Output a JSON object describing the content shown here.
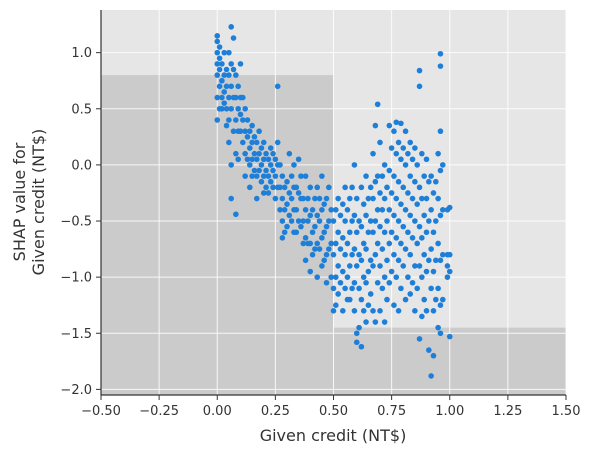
{
  "chart_data": {
    "type": "scatter",
    "title": "",
    "xlabel": "Given credit (NT$)",
    "ylabel_lines": [
      "SHAP value for",
      "Given credit (NT$)"
    ],
    "xlim": [
      -0.5,
      1.5
    ],
    "ylim": [
      -2.05,
      1.38
    ],
    "xticks": [
      -0.5,
      -0.25,
      0.0,
      0.25,
      0.5,
      0.75,
      1.0,
      1.25,
      1.5
    ],
    "xtick_labels": [
      "−0.50",
      "−0.25",
      "0.00",
      "0.25",
      "0.50",
      "0.75",
      "1.00",
      "1.25",
      "1.50"
    ],
    "yticks": [
      -2.0,
      -1.5,
      -1.0,
      -0.5,
      0.0,
      0.5,
      1.0
    ],
    "ytick_labels": [
      "−2.0",
      "−1.5",
      "−1.0",
      "−0.5",
      "0.0",
      "0.5",
      "1.0"
    ],
    "grid": true,
    "colors": {
      "background": "#e6e6e6",
      "shade": "#cbcbcb",
      "point": "#1e7fd8",
      "grid": "#ffffff",
      "axis": "#333333"
    },
    "shaded_regions": [
      {
        "x": [
          -0.5,
          0.5
        ],
        "y": [
          -2.05,
          0.8
        ]
      },
      {
        "x": [
          0.5,
          1.5
        ],
        "y": [
          -2.05,
          -1.45
        ]
      }
    ],
    "points": [
      [
        0.0,
        1.15
      ],
      [
        0.0,
        1.1
      ],
      [
        0.0,
        1.0
      ],
      [
        0.0,
        0.9
      ],
      [
        0.0,
        0.8
      ],
      [
        0.0,
        0.6
      ],
      [
        0.0,
        0.4
      ],
      [
        0.01,
        1.05
      ],
      [
        0.01,
        0.95
      ],
      [
        0.01,
        0.85
      ],
      [
        0.01,
        0.7
      ],
      [
        0.01,
        0.5
      ],
      [
        0.02,
        0.9
      ],
      [
        0.02,
        0.75
      ],
      [
        0.02,
        0.6
      ],
      [
        0.02,
        0.5
      ],
      [
        0.03,
        1.0
      ],
      [
        0.03,
        0.8
      ],
      [
        0.03,
        0.65
      ],
      [
        0.03,
        0.55
      ],
      [
        0.04,
        0.85
      ],
      [
        0.04,
        0.7
      ],
      [
        0.04,
        0.5
      ],
      [
        0.04,
        0.35
      ],
      [
        0.05,
        1.0
      ],
      [
        0.05,
        0.8
      ],
      [
        0.05,
        0.6
      ],
      [
        0.05,
        0.4
      ],
      [
        0.05,
        0.2
      ],
      [
        0.06,
        1.23
      ],
      [
        0.06,
        0.9
      ],
      [
        0.06,
        0.7
      ],
      [
        0.06,
        0.5
      ],
      [
        0.06,
        0.0
      ],
      [
        0.06,
        -0.3
      ],
      [
        0.07,
        1.13
      ],
      [
        0.07,
        0.85
      ],
      [
        0.07,
        0.6
      ],
      [
        0.07,
        0.3
      ],
      [
        0.08,
        0.8
      ],
      [
        0.08,
        0.6
      ],
      [
        0.08,
        0.4
      ],
      [
        0.08,
        0.1
      ],
      [
        0.08,
        -0.44
      ],
      [
        0.09,
        0.7
      ],
      [
        0.09,
        0.5
      ],
      [
        0.09,
        0.3
      ],
      [
        0.09,
        0.05
      ],
      [
        0.1,
        0.9
      ],
      [
        0.1,
        0.6
      ],
      [
        0.1,
        0.45
      ],
      [
        0.1,
        0.3
      ],
      [
        0.11,
        0.6
      ],
      [
        0.11,
        0.4
      ],
      [
        0.11,
        0.2
      ],
      [
        0.12,
        0.5
      ],
      [
        0.12,
        0.3
      ],
      [
        0.12,
        0.1
      ],
      [
        0.12,
        -0.1
      ],
      [
        0.13,
        0.4
      ],
      [
        0.13,
        0.25
      ],
      [
        0.13,
        0.05
      ],
      [
        0.14,
        0.3
      ],
      [
        0.14,
        0.15
      ],
      [
        0.14,
        0.0
      ],
      [
        0.14,
        -0.2
      ],
      [
        0.15,
        0.35
      ],
      [
        0.15,
        0.2
      ],
      [
        0.15,
        0.05
      ],
      [
        0.15,
        -0.1
      ],
      [
        0.16,
        0.25
      ],
      [
        0.16,
        0.1
      ],
      [
        0.16,
        -0.05
      ],
      [
        0.17,
        0.2
      ],
      [
        0.17,
        0.05
      ],
      [
        0.17,
        -0.1
      ],
      [
        0.17,
        -0.3
      ],
      [
        0.18,
        0.3
      ],
      [
        0.18,
        0.1
      ],
      [
        0.18,
        -0.05
      ],
      [
        0.19,
        0.15
      ],
      [
        0.19,
        0.0
      ],
      [
        0.19,
        -0.15
      ],
      [
        0.2,
        0.2
      ],
      [
        0.2,
        0.05
      ],
      [
        0.2,
        -0.1
      ],
      [
        0.2,
        -0.25
      ],
      [
        0.21,
        0.1
      ],
      [
        0.21,
        -0.05
      ],
      [
        0.21,
        -0.2
      ],
      [
        0.22,
        0.05
      ],
      [
        0.22,
        -0.1
      ],
      [
        0.22,
        -0.25
      ],
      [
        0.23,
        0.15
      ],
      [
        0.23,
        0.0
      ],
      [
        0.23,
        -0.15
      ],
      [
        0.24,
        0.1
      ],
      [
        0.24,
        -0.05
      ],
      [
        0.24,
        -0.2
      ],
      [
        0.25,
        0.05
      ],
      [
        0.25,
        -0.1
      ],
      [
        0.25,
        -0.3
      ],
      [
        0.26,
        0.7
      ],
      [
        0.26,
        0.2
      ],
      [
        0.26,
        0.0
      ],
      [
        0.26,
        -0.2
      ],
      [
        0.27,
        0.0
      ],
      [
        0.27,
        -0.2
      ],
      [
        0.27,
        -0.4
      ],
      [
        0.28,
        -0.1
      ],
      [
        0.28,
        -0.3
      ],
      [
        0.28,
        -0.5
      ],
      [
        0.28,
        -0.65
      ],
      [
        0.29,
        -0.2
      ],
      [
        0.29,
        -0.4
      ],
      [
        0.29,
        -0.6
      ],
      [
        0.3,
        -0.15
      ],
      [
        0.3,
        -0.35
      ],
      [
        0.3,
        -0.55
      ],
      [
        0.31,
        0.1
      ],
      [
        0.31,
        -0.25
      ],
      [
        0.31,
        -0.45
      ],
      [
        0.32,
        -0.1
      ],
      [
        0.32,
        -0.3
      ],
      [
        0.32,
        -0.5
      ],
      [
        0.33,
        0.0
      ],
      [
        0.33,
        -0.2
      ],
      [
        0.33,
        -0.4
      ],
      [
        0.33,
        -0.6
      ],
      [
        0.34,
        -0.2
      ],
      [
        0.34,
        -0.4
      ],
      [
        0.34,
        -0.6
      ],
      [
        0.35,
        0.05
      ],
      [
        0.35,
        -0.25
      ],
      [
        0.35,
        -0.5
      ],
      [
        0.36,
        -0.1
      ],
      [
        0.36,
        -0.3
      ],
      [
        0.36,
        -0.55
      ],
      [
        0.37,
        -0.3
      ],
      [
        0.37,
        -0.5
      ],
      [
        0.37,
        -0.7
      ],
      [
        0.38,
        -0.1
      ],
      [
        0.38,
        -0.4
      ],
      [
        0.38,
        -0.65
      ],
      [
        0.38,
        -0.85
      ],
      [
        0.39,
        -0.3
      ],
      [
        0.39,
        -0.5
      ],
      [
        0.39,
        -0.7
      ],
      [
        0.4,
        -0.2
      ],
      [
        0.4,
        -0.45
      ],
      [
        0.4,
        -0.7
      ],
      [
        0.4,
        -0.95
      ],
      [
        0.41,
        -0.4
      ],
      [
        0.41,
        -0.6
      ],
      [
        0.41,
        -0.8
      ],
      [
        0.42,
        -0.3
      ],
      [
        0.42,
        -0.55
      ],
      [
        0.42,
        -0.75
      ],
      [
        0.43,
        -0.2
      ],
      [
        0.43,
        -0.45
      ],
      [
        0.43,
        -0.7
      ],
      [
        0.43,
        -1.0
      ],
      [
        0.44,
        -0.3
      ],
      [
        0.44,
        -0.5
      ],
      [
        0.44,
        -0.75
      ],
      [
        0.45,
        -0.1
      ],
      [
        0.45,
        -0.4
      ],
      [
        0.45,
        -0.65
      ],
      [
        0.45,
        -0.9
      ],
      [
        0.46,
        -0.35
      ],
      [
        0.46,
        -0.6
      ],
      [
        0.46,
        -0.85
      ],
      [
        0.47,
        -0.3
      ],
      [
        0.47,
        -0.55
      ],
      [
        0.47,
        -0.8
      ],
      [
        0.47,
        -1.05
      ],
      [
        0.48,
        -0.2
      ],
      [
        0.48,
        -0.5
      ],
      [
        0.48,
        -0.75
      ],
      [
        0.49,
        -0.4
      ],
      [
        0.49,
        -0.7
      ],
      [
        0.49,
        -1.0
      ],
      [
        0.5,
        -0.5
      ],
      [
        0.5,
        -0.8
      ],
      [
        0.5,
        -1.1
      ],
      [
        0.5,
        -1.3
      ],
      [
        0.51,
        -0.4
      ],
      [
        0.51,
        -0.7
      ],
      [
        0.51,
        -1.0
      ],
      [
        0.51,
        -1.25
      ],
      [
        0.52,
        -0.3
      ],
      [
        0.52,
        -0.6
      ],
      [
        0.52,
        -0.9
      ],
      [
        0.52,
        -1.15
      ],
      [
        0.53,
        -0.45
      ],
      [
        0.53,
        -0.75
      ],
      [
        0.53,
        -1.05
      ],
      [
        0.54,
        -0.35
      ],
      [
        0.54,
        -0.65
      ],
      [
        0.54,
        -0.95
      ],
      [
        0.54,
        -1.3
      ],
      [
        0.55,
        -0.2
      ],
      [
        0.55,
        -0.5
      ],
      [
        0.55,
        -0.8
      ],
      [
        0.55,
        -1.1
      ],
      [
        0.56,
        -0.4
      ],
      [
        0.56,
        -0.7
      ],
      [
        0.56,
        -1.0
      ],
      [
        0.56,
        -1.2
      ],
      [
        0.57,
        -0.3
      ],
      [
        0.57,
        -0.6
      ],
      [
        0.57,
        -0.9
      ],
      [
        0.57,
        -1.2
      ],
      [
        0.58,
        -0.2
      ],
      [
        0.58,
        -0.5
      ],
      [
        0.58,
        -0.8
      ],
      [
        0.58,
        -1.1
      ],
      [
        0.59,
        0.0
      ],
      [
        0.59,
        -0.45
      ],
      [
        0.59,
        -0.75
      ],
      [
        0.59,
        -1.05
      ],
      [
        0.59,
        -1.3
      ],
      [
        0.6,
        -0.3
      ],
      [
        0.6,
        -0.6
      ],
      [
        0.6,
        -0.9
      ],
      [
        0.6,
        -1.5
      ],
      [
        0.6,
        -1.58
      ],
      [
        0.61,
        -0.5
      ],
      [
        0.61,
        -0.8
      ],
      [
        0.61,
        -1.1
      ],
      [
        0.61,
        -1.45
      ],
      [
        0.62,
        -0.2
      ],
      [
        0.62,
        -0.55
      ],
      [
        0.62,
        -0.85
      ],
      [
        0.62,
        -1.2
      ],
      [
        0.62,
        -1.62
      ],
      [
        0.63,
        -0.35
      ],
      [
        0.63,
        -0.7
      ],
      [
        0.63,
        -1.0
      ],
      [
        0.63,
        -1.3
      ],
      [
        0.64,
        -0.1
      ],
      [
        0.64,
        -0.45
      ],
      [
        0.64,
        -0.75
      ],
      [
        0.64,
        -1.05
      ],
      [
        0.64,
        -1.4
      ],
      [
        0.65,
        -0.3
      ],
      [
        0.65,
        -0.6
      ],
      [
        0.65,
        -0.95
      ],
      [
        0.65,
        -1.25
      ],
      [
        0.66,
        -0.2
      ],
      [
        0.66,
        -0.5
      ],
      [
        0.66,
        -0.85
      ],
      [
        0.66,
        -1.15
      ],
      [
        0.67,
        0.1
      ],
      [
        0.67,
        -0.3
      ],
      [
        0.67,
        -0.6
      ],
      [
        0.67,
        -0.9
      ],
      [
        0.67,
        -1.3
      ],
      [
        0.68,
        0.35
      ],
      [
        0.68,
        -0.15
      ],
      [
        0.68,
        -0.5
      ],
      [
        0.68,
        -0.8
      ],
      [
        0.68,
        -1.4
      ],
      [
        0.69,
        0.54
      ],
      [
        0.69,
        -0.1
      ],
      [
        0.69,
        -0.4
      ],
      [
        0.69,
        -0.7
      ],
      [
        0.69,
        -1.05
      ],
      [
        0.7,
        0.2
      ],
      [
        0.7,
        -0.25
      ],
      [
        0.7,
        -0.55
      ],
      [
        0.7,
        -0.9
      ],
      [
        0.7,
        -1.3
      ],
      [
        0.71,
        -0.1
      ],
      [
        0.71,
        -0.4
      ],
      [
        0.71,
        -0.75
      ],
      [
        0.71,
        -1.1
      ],
      [
        0.72,
        0.0
      ],
      [
        0.72,
        -0.3
      ],
      [
        0.72,
        -0.6
      ],
      [
        0.72,
        -1.0
      ],
      [
        0.72,
        -1.4
      ],
      [
        0.73,
        -0.2
      ],
      [
        0.73,
        -0.5
      ],
      [
        0.73,
        -0.85
      ],
      [
        0.73,
        -1.2
      ],
      [
        0.74,
        0.35
      ],
      [
        0.74,
        -0.05
      ],
      [
        0.74,
        -0.4
      ],
      [
        0.74,
        -0.7
      ],
      [
        0.74,
        -1.05
      ],
      [
        0.75,
        0.15
      ],
      [
        0.75,
        -0.25
      ],
      [
        0.75,
        -0.6
      ],
      [
        0.75,
        -0.95
      ],
      [
        0.76,
        0.3
      ],
      [
        0.76,
        -0.1
      ],
      [
        0.76,
        -0.45
      ],
      [
        0.76,
        -0.8
      ],
      [
        0.76,
        -1.25
      ],
      [
        0.77,
        0.38
      ],
      [
        0.77,
        0.1
      ],
      [
        0.77,
        -0.3
      ],
      [
        0.77,
        -0.65
      ],
      [
        0.77,
        -1.0
      ],
      [
        0.78,
        0.2
      ],
      [
        0.78,
        -0.15
      ],
      [
        0.78,
        -0.5
      ],
      [
        0.78,
        -0.85
      ],
      [
        0.78,
        -1.3
      ],
      [
        0.79,
        0.37
      ],
      [
        0.79,
        0.05
      ],
      [
        0.79,
        -0.35
      ],
      [
        0.79,
        -0.7
      ],
      [
        0.79,
        -1.1
      ],
      [
        0.8,
        0.15
      ],
      [
        0.8,
        -0.2
      ],
      [
        0.8,
        -0.55
      ],
      [
        0.8,
        -0.9
      ],
      [
        0.81,
        0.3
      ],
      [
        0.81,
        0.0
      ],
      [
        0.81,
        -0.4
      ],
      [
        0.81,
        -0.75
      ],
      [
        0.81,
        -1.2
      ],
      [
        0.82,
        0.1
      ],
      [
        0.82,
        -0.25
      ],
      [
        0.82,
        -0.6
      ],
      [
        0.82,
        -1.0
      ],
      [
        0.83,
        0.2
      ],
      [
        0.83,
        -0.1
      ],
      [
        0.83,
        -0.45
      ],
      [
        0.83,
        -0.8
      ],
      [
        0.83,
        -1.15
      ],
      [
        0.84,
        0.05
      ],
      [
        0.84,
        -0.3
      ],
      [
        0.84,
        -0.65
      ],
      [
        0.84,
        -1.05
      ],
      [
        0.85,
        0.15
      ],
      [
        0.85,
        -0.15
      ],
      [
        0.85,
        -0.5
      ],
      [
        0.85,
        -0.9
      ],
      [
        0.85,
        -1.3
      ],
      [
        0.86,
        0.0
      ],
      [
        0.86,
        -0.35
      ],
      [
        0.86,
        -0.7
      ],
      [
        0.86,
        -1.1
      ],
      [
        0.87,
        0.84
      ],
      [
        0.87,
        0.7
      ],
      [
        0.87,
        -0.2
      ],
      [
        0.87,
        -0.55
      ],
      [
        0.87,
        -0.9
      ],
      [
        0.87,
        -1.55
      ],
      [
        0.88,
        0.1
      ],
      [
        0.88,
        -0.3
      ],
      [
        0.88,
        -0.65
      ],
      [
        0.88,
        -1.0
      ],
      [
        0.88,
        -1.35
      ],
      [
        0.89,
        -0.1
      ],
      [
        0.89,
        -0.45
      ],
      [
        0.89,
        -0.8
      ],
      [
        0.89,
        -1.2
      ],
      [
        0.9,
        0.05
      ],
      [
        0.9,
        -0.3
      ],
      [
        0.9,
        -0.6
      ],
      [
        0.9,
        -0.95
      ],
      [
        0.9,
        -1.3
      ],
      [
        0.91,
        -0.15
      ],
      [
        0.91,
        -0.5
      ],
      [
        0.91,
        -0.85
      ],
      [
        0.91,
        -1.65
      ],
      [
        0.92,
        -0.1
      ],
      [
        0.92,
        -0.4
      ],
      [
        0.92,
        -0.75
      ],
      [
        0.92,
        -1.1
      ],
      [
        0.92,
        -1.88
      ],
      [
        0.93,
        -0.25
      ],
      [
        0.93,
        -0.6
      ],
      [
        0.93,
        -0.95
      ],
      [
        0.93,
        -1.3
      ],
      [
        0.93,
        -1.7
      ],
      [
        0.94,
        -0.15
      ],
      [
        0.94,
        -0.5
      ],
      [
        0.94,
        -0.85
      ],
      [
        0.94,
        -1.2
      ],
      [
        0.95,
        0.1
      ],
      [
        0.95,
        -0.3
      ],
      [
        0.95,
        -0.7
      ],
      [
        0.95,
        -1.1
      ],
      [
        0.95,
        -1.45
      ],
      [
        0.96,
        0.99
      ],
      [
        0.96,
        0.88
      ],
      [
        0.96,
        0.3
      ],
      [
        0.96,
        -0.05
      ],
      [
        0.96,
        -0.45
      ],
      [
        0.96,
        -0.85
      ],
      [
        0.96,
        -1.25
      ],
      [
        0.96,
        -1.5
      ],
      [
        0.97,
        0.0
      ],
      [
        0.97,
        -0.4
      ],
      [
        0.97,
        -0.8
      ],
      [
        0.97,
        -1.2
      ],
      [
        0.99,
        -0.4
      ],
      [
        0.99,
        -0.8
      ],
      [
        0.99,
        -0.9
      ],
      [
        0.99,
        -1.0
      ],
      [
        1.0,
        -0.38
      ],
      [
        1.0,
        -0.8
      ],
      [
        1.0,
        -0.95
      ],
      [
        1.0,
        -1.53
      ]
    ]
  }
}
